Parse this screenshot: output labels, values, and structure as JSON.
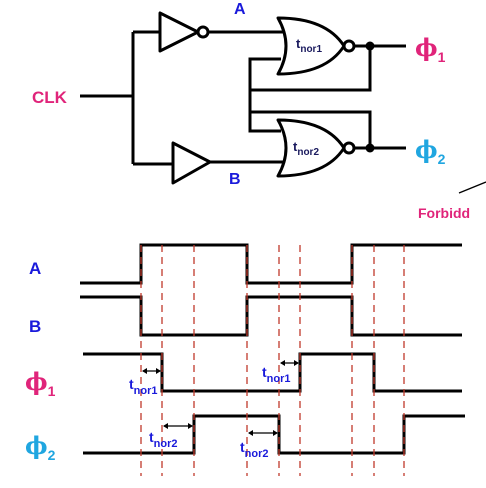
{
  "circuit": {
    "clk_label": "CLK",
    "node_a": "A",
    "node_b": "B",
    "gate1_label_main": "t",
    "gate1_label_sub": "nor1",
    "gate2_label_main": "t",
    "gate2_label_sub": "nor2",
    "out1_symbol": "ϕ",
    "out1_sub": "1",
    "out2_symbol": "ϕ",
    "out2_sub": "2",
    "side_note": "Forbidd",
    "colors": {
      "clk": "#e0247a",
      "nodes": "#1a1adb",
      "phi1": "#e0247a",
      "phi2": "#20a6e0",
      "note": "#e0247a"
    }
  },
  "timing": {
    "signals": [
      {
        "name": "A",
        "symbol": "",
        "sub": ""
      },
      {
        "name": "B",
        "symbol": "",
        "sub": ""
      },
      {
        "name": "",
        "symbol": "ϕ",
        "sub": "1"
      },
      {
        "name": "",
        "symbol": "ϕ",
        "sub": "2"
      }
    ],
    "delay_labels": [
      {
        "main": "t",
        "sub": "nor1"
      },
      {
        "main": "t",
        "sub": "nor1"
      },
      {
        "main": "t",
        "sub": "nor2"
      },
      {
        "main": "t",
        "sub": "nor2"
      }
    ],
    "waveforms": {
      "A": [
        0,
        1,
        0,
        1
      ],
      "B": [
        1,
        0,
        1,
        0
      ],
      "phi1": [
        1,
        0,
        1,
        0
      ],
      "phi2": [
        0,
        1,
        0,
        1
      ]
    },
    "guide_color": "#c0392b"
  }
}
